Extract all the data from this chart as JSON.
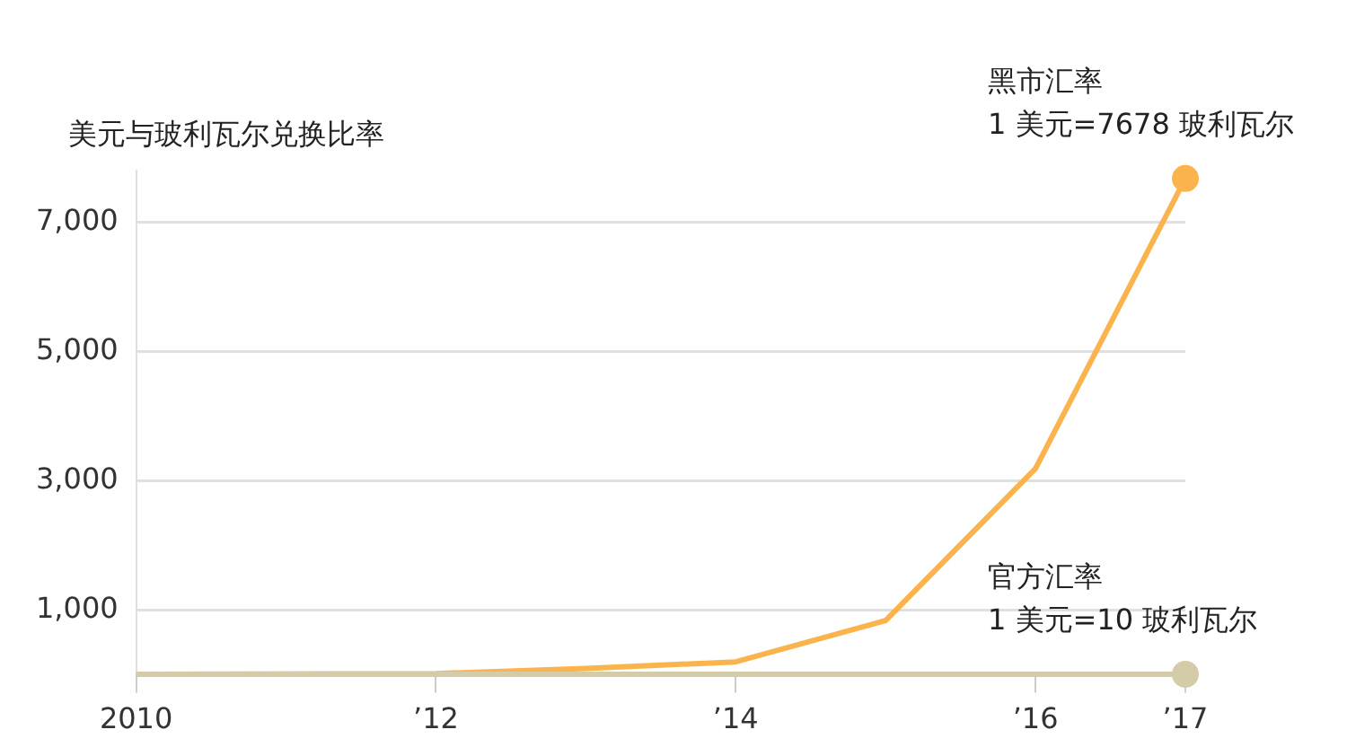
{
  "chart_data": {
    "type": "line",
    "ylabel": "美元与玻利瓦尔兑换比率",
    "x": [
      2010,
      2012,
      2013,
      2014,
      2015,
      2016,
      2017
    ],
    "series": [
      {
        "color": "#d4cca8",
        "values": [
          10,
          10,
          10,
          10,
          10,
          10,
          10
        ]
      },
      {
        "color": "#fbb44d",
        "values": [
          10,
          20,
          100,
          200,
          840,
          3190,
          7678
        ]
      }
    ],
    "xlim": [
      2010,
      2017
    ],
    "xticks": [
      {
        "value": 2010,
        "label": "2010"
      },
      {
        "value": 2012,
        "label": "’12"
      },
      {
        "value": 2014,
        "label": "’14"
      },
      {
        "value": 2016,
        "label": "’16"
      },
      {
        "value": 2017,
        "label": "’17"
      }
    ],
    "ylim": [
      0,
      7800
    ],
    "yticks": [
      {
        "value": 1000,
        "label": "1,000"
      },
      {
        "value": 3000,
        "label": "3,000"
      },
      {
        "value": 5000,
        "label": "5,000"
      },
      {
        "value": 7000,
        "label": "7,000"
      }
    ],
    "grid": "y",
    "annotations": [
      {
        "text": "黑市汇率\n1 美元=7678 玻利瓦尔",
        "x": 2017,
        "y": 7678
      },
      {
        "text": "官方汇率\n1 美元=10 玻利瓦尔",
        "x": 2017,
        "y": 10
      }
    ]
  }
}
